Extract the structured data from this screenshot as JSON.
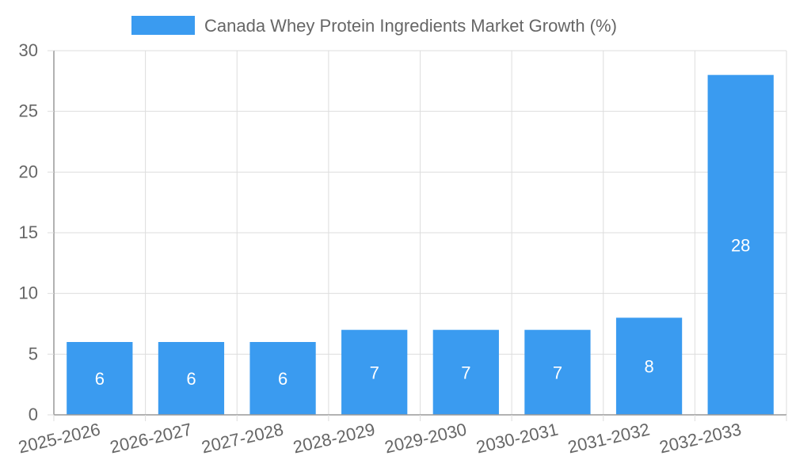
{
  "chart_data": {
    "type": "bar",
    "title": "",
    "xlabel": "",
    "ylabel": "",
    "categories": [
      "2025-2026",
      "2026-2027",
      "2027-2028",
      "2028-2029",
      "2029-2030",
      "2030-2031",
      "2031-2032",
      "2032-2033"
    ],
    "series": [
      {
        "name": "Canada Whey Protein Ingredients Market Growth (%)",
        "values": [
          6,
          6,
          6,
          7,
          7,
          7,
          8,
          28
        ]
      }
    ],
    "ylim": [
      0,
      30
    ],
    "yticks": [
      "0",
      "5",
      "10",
      "15",
      "20",
      "25",
      "30"
    ],
    "grid": true,
    "legend": "top-center",
    "data_labels": true
  },
  "colors": {
    "bar": "#3a9bf0",
    "grid": "#dddddd",
    "axis": "#999999",
    "text": "#666666"
  }
}
